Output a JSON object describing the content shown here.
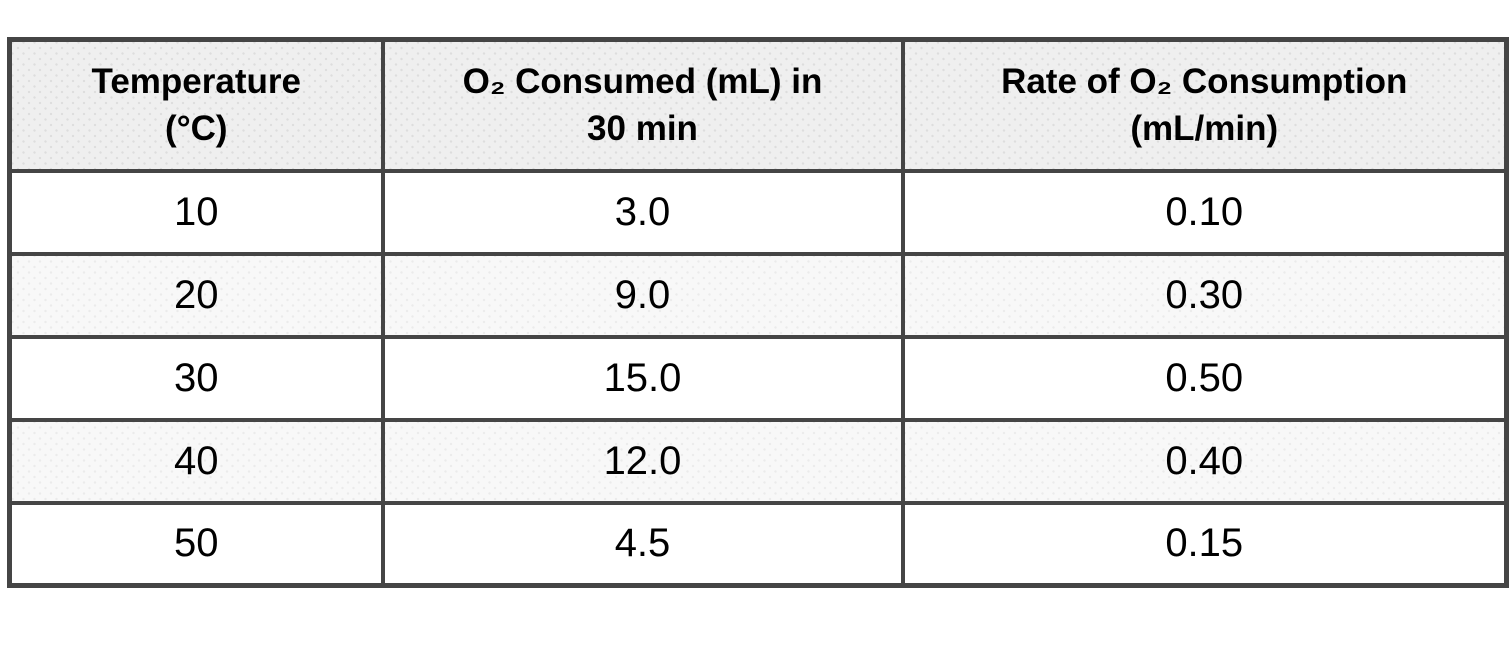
{
  "page": {
    "background": "#ffffff"
  },
  "colors": {
    "border": "#454545",
    "header_bg": "#efefef",
    "stripe_bg": "#f8f8f8",
    "row_bg": "#ffffff",
    "text": "#000000"
  },
  "table": {
    "headers": [
      {
        "lines": [
          "Temperature",
          "(°C)"
        ]
      },
      {
        "lines": [
          "O₂ Consumed (mL) in",
          "30 min"
        ]
      },
      {
        "lines": [
          "Rate of O₂ Consumption",
          "(mL/min)"
        ]
      }
    ],
    "rows": [
      {
        "temperature": "10",
        "o2_consumed": "3.0",
        "rate": "0.10"
      },
      {
        "temperature": "20",
        "o2_consumed": "9.0",
        "rate": "0.30"
      },
      {
        "temperature": "30",
        "o2_consumed": "15.0",
        "rate": "0.50"
      },
      {
        "temperature": "40",
        "o2_consumed": "12.0",
        "rate": "0.40"
      },
      {
        "temperature": "50",
        "o2_consumed": "4.5",
        "rate": "0.15"
      }
    ]
  },
  "chart_data": {
    "type": "table",
    "title": "",
    "columns": [
      "Temperature (°C)",
      "O₂ Consumed (mL) in 30 min",
      "Rate of O₂ Consumption (mL/min)"
    ],
    "rows": [
      [
        10,
        3.0,
        0.1
      ],
      [
        20,
        9.0,
        0.3
      ],
      [
        30,
        15.0,
        0.5
      ],
      [
        40,
        12.0,
        0.4
      ],
      [
        50,
        4.5,
        0.15
      ]
    ]
  }
}
